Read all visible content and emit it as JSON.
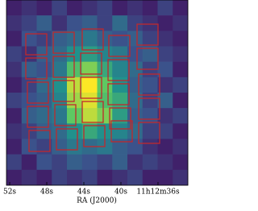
{
  "chart_data": {
    "type": "image",
    "colormap": "viridis",
    "xlabel": "RA (J2000)",
    "xlim": [
      52.35,
      32.78
    ],
    "xticks": [
      {
        "value": 52,
        "label": "52s"
      },
      {
        "value": 48,
        "label": "48s"
      },
      {
        "value": 44,
        "label": "44s"
      },
      {
        "value": 40,
        "label": "40s"
      },
      {
        "value": 36,
        "label": "11h12m36s"
      }
    ],
    "values": [
      [
        0.1,
        0.15,
        0.1,
        0.2,
        0.1,
        0.15,
        0.2,
        0.1,
        0.15,
        0.1,
        0.2,
        0.1
      ],
      [
        0.15,
        0.2,
        0.3,
        0.15,
        0.25,
        0.3,
        0.2,
        0.35,
        0.2,
        0.15,
        0.1,
        0.15
      ],
      [
        0.1,
        0.25,
        0.2,
        0.3,
        0.35,
        0.4,
        0.3,
        0.25,
        0.3,
        0.2,
        0.15,
        0.1
      ],
      [
        0.2,
        0.15,
        0.3,
        0.35,
        0.5,
        0.55,
        0.45,
        0.4,
        0.25,
        0.3,
        0.2,
        0.15
      ],
      [
        0.15,
        0.3,
        0.25,
        0.4,
        0.7,
        0.8,
        0.6,
        0.45,
        0.35,
        0.2,
        0.25,
        0.1
      ],
      [
        0.1,
        0.2,
        0.35,
        0.5,
        0.9,
        1,
        0.75,
        0.5,
        0.3,
        0.25,
        0.15,
        0.2
      ],
      [
        0.2,
        0.25,
        0.3,
        0.45,
        0.85,
        0.95,
        0.7,
        0.6,
        0.35,
        0.2,
        0.3,
        0.1
      ],
      [
        0.1,
        0.3,
        0.35,
        0.4,
        0.75,
        0.9,
        0.8,
        0.55,
        0.3,
        0.25,
        0.15,
        0.2
      ],
      [
        0.15,
        0.2,
        0.3,
        0.35,
        0.5,
        0.6,
        0.5,
        0.45,
        0.35,
        0.2,
        0.2,
        0.1
      ],
      [
        0.1,
        0.25,
        0.2,
        0.3,
        0.4,
        0.35,
        0.4,
        0.3,
        0.25,
        0.15,
        0.1,
        0.15
      ],
      [
        0.2,
        0.1,
        0.25,
        0.2,
        0.3,
        0.25,
        0.2,
        0.3,
        0.15,
        0.2,
        0.15,
        0.1
      ],
      [
        0.1,
        0.15,
        0.1,
        0.2,
        0.15,
        0.2,
        0.1,
        0.15,
        0.2,
        0.1,
        0.1,
        0.15
      ]
    ]
  }
}
